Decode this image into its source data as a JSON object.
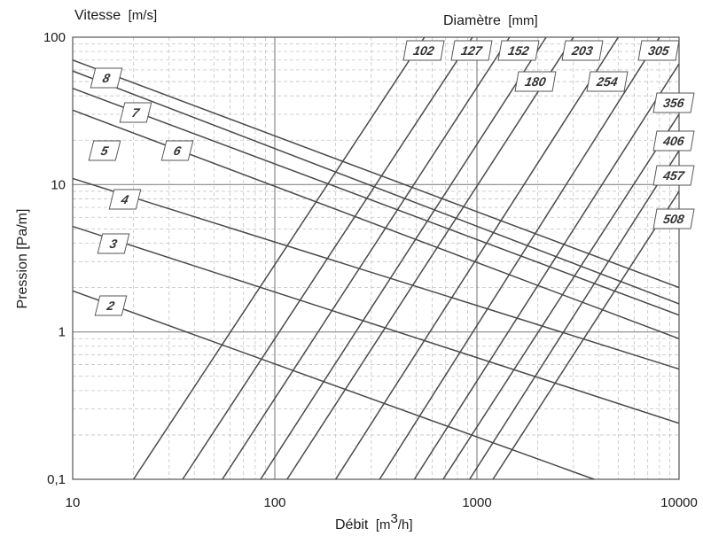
{
  "chart_data": {
    "type": "line",
    "x_scale": "log",
    "y_scale": "log",
    "xlim": [
      10,
      10000
    ],
    "ylim": [
      0.1,
      100
    ],
    "grid": true,
    "xlabel": "Débit",
    "xlabel_unit_prefix": "[m",
    "xlabel_unit_sup": "3",
    "xlabel_unit_suffix": "/h]",
    "ylabel": "Pression [Pa/m]",
    "velocity_title": "Vitesse",
    "velocity_unit": "[m/s]",
    "diameter_title": "Diamètre",
    "diameter_unit": "[mm]",
    "x_ticks": [
      "10",
      "100",
      "1000",
      "10000"
    ],
    "y_ticks": [
      "0,1",
      "1",
      "10",
      "100"
    ],
    "velocity_series": [
      {
        "name": "2",
        "points": [
          [
            10,
            1.9
          ],
          [
            3800,
            0.1
          ]
        ]
      },
      {
        "name": "3",
        "points": [
          [
            10,
            5.2
          ],
          [
            10000,
            0.24
          ]
        ]
      },
      {
        "name": "4",
        "points": [
          [
            10,
            11
          ],
          [
            10000,
            0.56
          ]
        ]
      },
      {
        "name": "5",
        "points": [
          [
            10,
            32
          ],
          [
            10000,
            0.9
          ]
        ]
      },
      {
        "name": "6",
        "points": [
          [
            10,
            45
          ],
          [
            10000,
            1.3
          ]
        ]
      },
      {
        "name": "7",
        "points": [
          [
            10,
            59
          ],
          [
            10000,
            1.55
          ]
        ]
      },
      {
        "name": "8",
        "points": [
          [
            10,
            70
          ],
          [
            10000,
            2.0
          ]
        ]
      }
    ],
    "diameter_series": [
      {
        "name": "102",
        "points": [
          [
            20,
            0.1
          ],
          [
            550,
            100
          ]
        ]
      },
      {
        "name": "127",
        "points": [
          [
            35,
            0.1
          ],
          [
            950,
            100
          ]
        ]
      },
      {
        "name": "152",
        "points": [
          [
            55,
            0.1
          ],
          [
            1450,
            100
          ]
        ]
      },
      {
        "name": "180",
        "points": [
          [
            85,
            0.1
          ],
          [
            2200,
            100
          ]
        ]
      },
      {
        "name": "203",
        "points": [
          [
            115,
            0.1
          ],
          [
            3000,
            100
          ]
        ]
      },
      {
        "name": "254",
        "points": [
          [
            200,
            0.1
          ],
          [
            5000,
            100
          ]
        ]
      },
      {
        "name": "305",
        "points": [
          [
            330,
            0.1
          ],
          [
            8000,
            100
          ]
        ]
      },
      {
        "name": "356",
        "points": [
          [
            490,
            0.1
          ],
          [
            10000,
            66
          ]
        ]
      },
      {
        "name": "406",
        "points": [
          [
            680,
            0.1
          ],
          [
            10000,
            30
          ]
        ]
      },
      {
        "name": "457",
        "points": [
          [
            920,
            0.1
          ],
          [
            10000,
            17
          ]
        ]
      },
      {
        "name": "508",
        "points": [
          [
            1200,
            0.1
          ],
          [
            10000,
            9
          ]
        ]
      }
    ]
  }
}
